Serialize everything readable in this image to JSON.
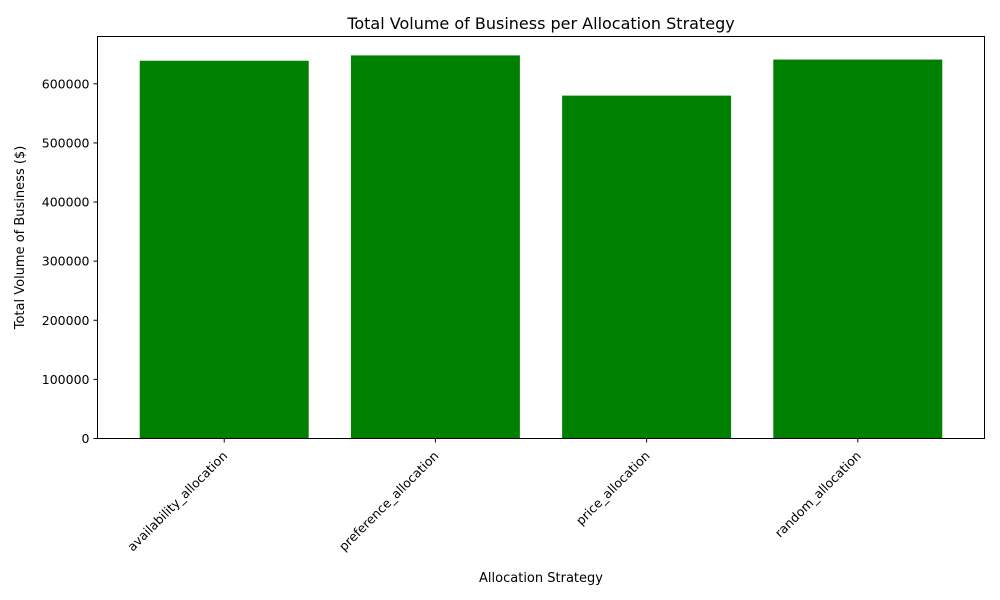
{
  "chart_data": {
    "type": "bar",
    "title": "Total Volume of Business per Allocation Strategy",
    "xlabel": "Allocation Strategy",
    "ylabel": "Total Volume of Business ($)",
    "categories": [
      "availability_allocation",
      "preference_allocation",
      "price_allocation",
      "random_allocation"
    ],
    "values": [
      639000,
      648000,
      580000,
      641000
    ],
    "ylim": [
      0,
      680000
    ],
    "yticks": [
      0,
      100000,
      200000,
      300000,
      400000,
      500000,
      600000
    ],
    "ytick_labels": [
      "0",
      "100000",
      "200000",
      "300000",
      "400000",
      "500000",
      "600000"
    ],
    "bar_color": "#008000",
    "grid": false,
    "x_tick_rotation_deg": 45
  }
}
